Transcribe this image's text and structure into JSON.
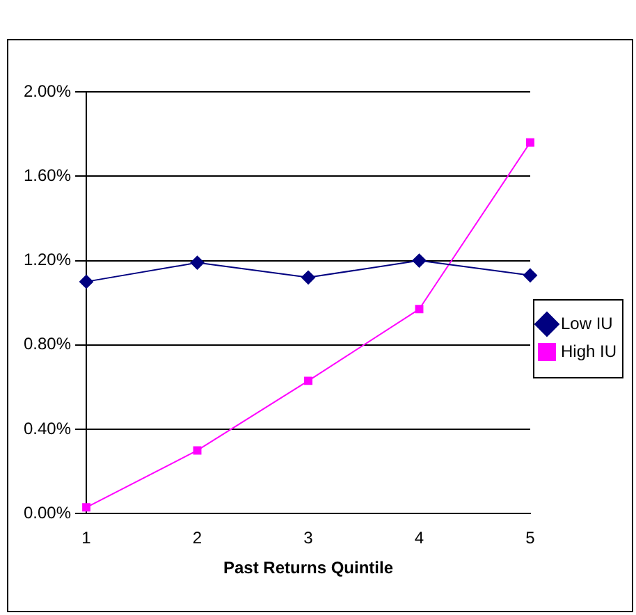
{
  "chart_data": {
    "type": "line",
    "xlabel": "Past Returns Quintile",
    "categories": [
      "1",
      "2",
      "3",
      "4",
      "5"
    ],
    "series": [
      {
        "name": "Low IU",
        "color": "#000080",
        "marker": "diamond",
        "values": [
          1.1,
          1.19,
          1.12,
          1.2,
          1.13
        ]
      },
      {
        "name": "High IU",
        "color": "#ff00ff",
        "marker": "square",
        "values": [
          0.03,
          0.3,
          0.63,
          0.97,
          1.76
        ]
      }
    ],
    "ylim": [
      0,
      2
    ],
    "yticks": [
      {
        "value": 0,
        "label": "0.00%"
      },
      {
        "value": 0.4,
        "label": "0.40%"
      },
      {
        "value": 0.8,
        "label": "0.80%"
      },
      {
        "value": 1.2,
        "label": "1.20%"
      },
      {
        "value": 1.6,
        "label": "1.60%"
      },
      {
        "value": 2,
        "label": "2.00%"
      }
    ],
    "grid": "y",
    "legend": "right",
    "line_style": "solid"
  }
}
